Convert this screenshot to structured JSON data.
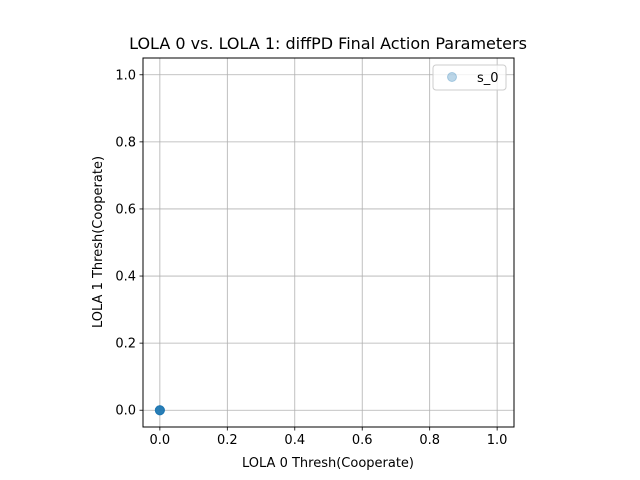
{
  "chart_data": {
    "type": "scatter",
    "title": "LOLA 0 vs. LOLA 1: diffPD Final Action Parameters",
    "xlabel": "LOLA 0 Thresh(Cooperate)",
    "ylabel": "LOLA 1 Thresh(Cooperate)",
    "xlim": [
      -0.05,
      1.05
    ],
    "ylim": [
      -0.05,
      1.05
    ],
    "xticks": [
      "0.0",
      "0.2",
      "0.4",
      "0.6",
      "0.8",
      "1.0"
    ],
    "yticks": [
      "0.0",
      "0.2",
      "0.4",
      "0.6",
      "0.8",
      "1.0"
    ],
    "xtick_values": [
      0.0,
      0.2,
      0.4,
      0.6,
      0.8,
      1.0
    ],
    "ytick_values": [
      0.0,
      0.2,
      0.4,
      0.6,
      0.8,
      1.0
    ],
    "grid": true,
    "legend_position": "top-right",
    "series": [
      {
        "name": "s_0",
        "color": "#1f77b4",
        "alpha": 0.3,
        "points": [
          {
            "x": 0.0,
            "y": 0.0
          },
          {
            "x": 0.0,
            "y": 0.0
          },
          {
            "x": 0.0,
            "y": 0.0
          },
          {
            "x": 0.0,
            "y": 0.0
          },
          {
            "x": 0.0,
            "y": 0.0
          },
          {
            "x": 0.0,
            "y": 0.0
          },
          {
            "x": 0.0,
            "y": 0.0
          },
          {
            "x": 0.0,
            "y": 0.0
          }
        ]
      }
    ]
  }
}
